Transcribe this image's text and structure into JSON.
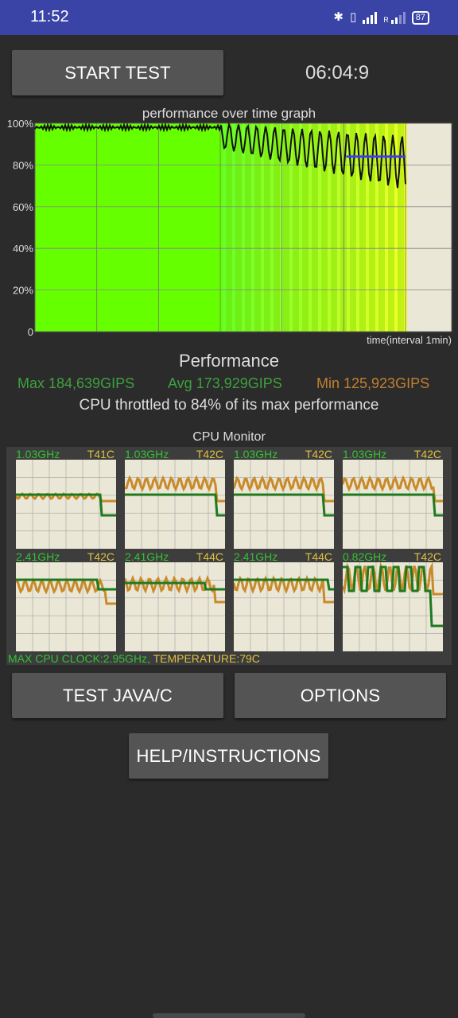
{
  "status_bar": {
    "time": "11:52",
    "battery": "87",
    "network_r": "R"
  },
  "controls": {
    "start_test": "START TEST",
    "timer": "06:04:9"
  },
  "graph": {
    "title": "performance over time graph",
    "x_note": "time(interval 1min)",
    "y_ticks": [
      "100%",
      "80%",
      "60%",
      "40%",
      "20%",
      "0"
    ],
    "throttle_line_pct": 84
  },
  "performance": {
    "heading": "Performance",
    "max": "Max 184,639GIPS",
    "avg": "Avg 173,929GIPS",
    "min": "Min 125,923GIPS",
    "throttle_text": "CPU throttled to 84% of its max performance"
  },
  "cpu_monitor": {
    "title": "CPU Monitor",
    "cores": [
      {
        "freq": "1.03GHz",
        "temp": "T41C"
      },
      {
        "freq": "1.03GHz",
        "temp": "T42C"
      },
      {
        "freq": "1.03GHz",
        "temp": "T42C"
      },
      {
        "freq": "1.03GHz",
        "temp": "T42C"
      },
      {
        "freq": "2.41GHz",
        "temp": "T42C"
      },
      {
        "freq": "2.41GHz",
        "temp": "T44C"
      },
      {
        "freq": "2.41GHz",
        "temp": "T44C"
      },
      {
        "freq": "0.82GHz",
        "temp": "T42C"
      }
    ],
    "footer_clock": "MAX CPU CLOCK:2.95GHz,",
    "footer_temp": "TEMPERATURE:79C"
  },
  "buttons": {
    "test_java": "TEST JAVA/C",
    "options": "OPTIONS",
    "help": "HELP/INSTRUCTIONS"
  },
  "colors": {
    "status_bar": "#3a43a6",
    "background": "#2b2b2b",
    "button": "#545454",
    "max_green": "#3fa03f",
    "min_orange": "#c08030",
    "graph_bg": "#ebe7d6",
    "throttle_blue": "#3c3cff"
  }
}
